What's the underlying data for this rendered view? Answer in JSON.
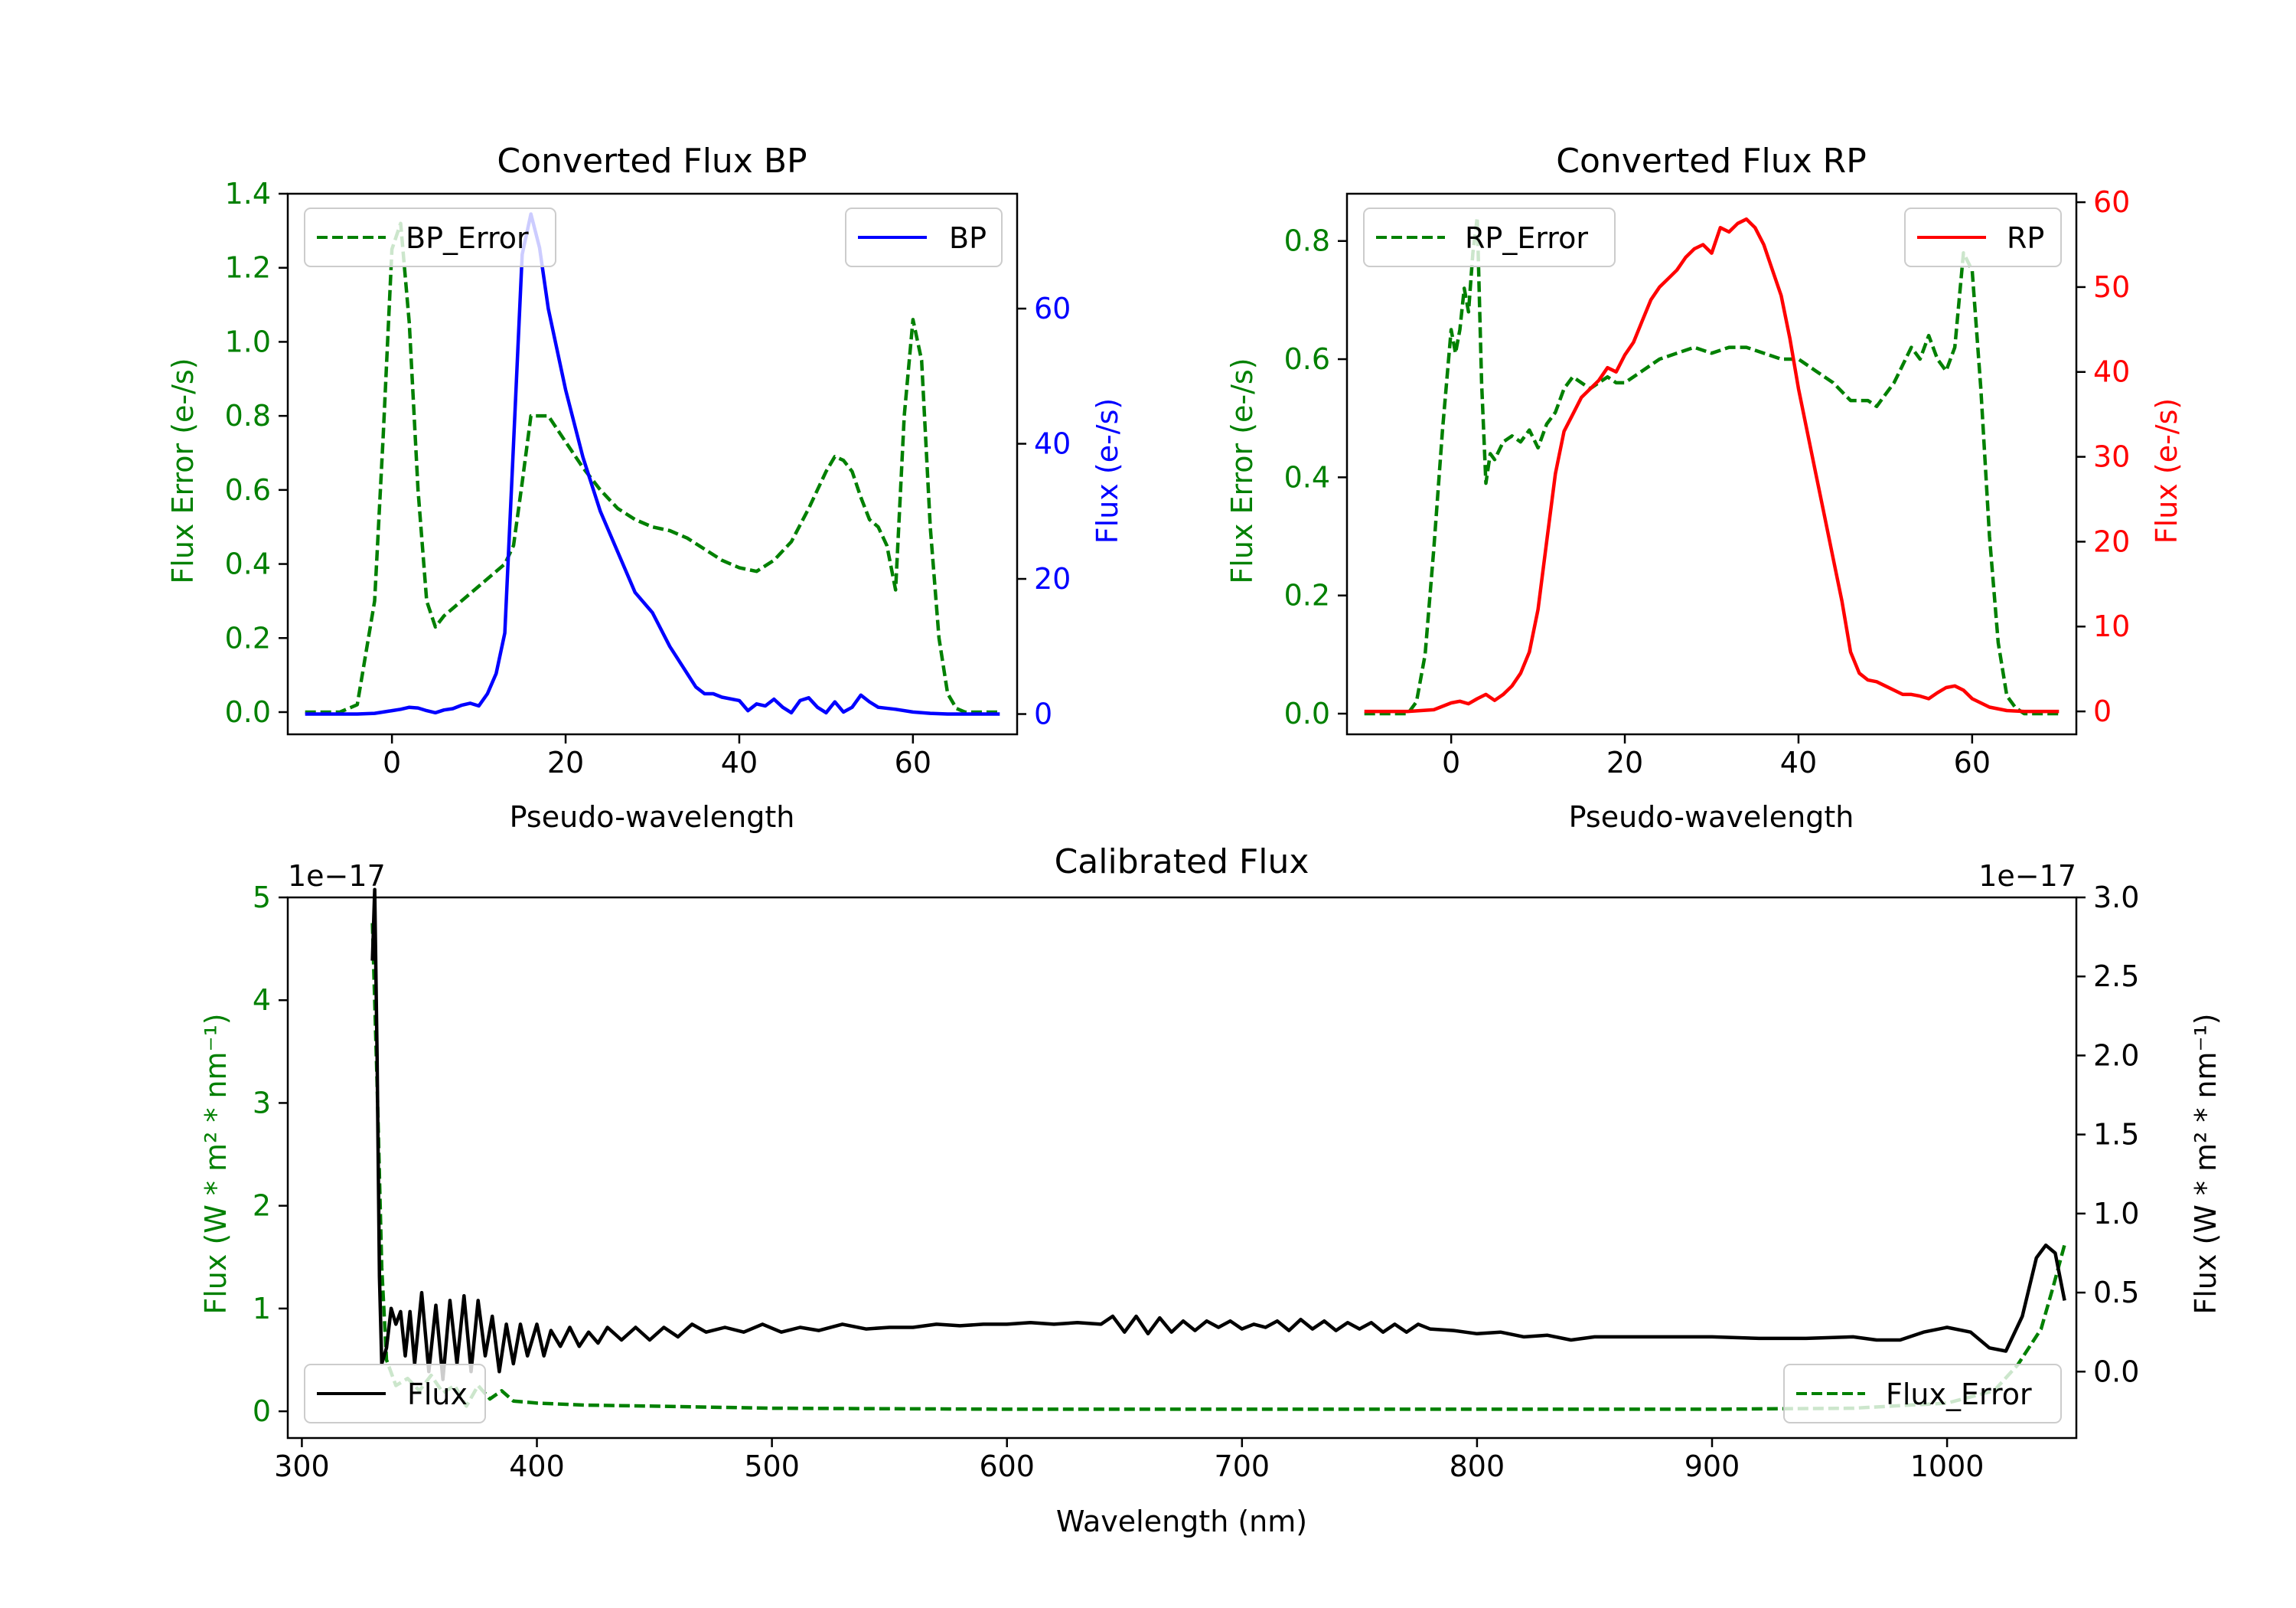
{
  "colors": {
    "bp": "#0000ff",
    "rp": "#ff0000",
    "error": "#008000",
    "flux": "#000000",
    "axis": "#000000"
  },
  "chart_data": [
    {
      "id": "bp",
      "type": "line",
      "title": "Converted Flux BP",
      "xlabel": "Pseudo-wavelength",
      "ylabel_left": "Flux Error (e-/s)",
      "ylabel_right": "Flux (e-/s)",
      "xlim": [
        -12,
        72
      ],
      "ylim_left": [
        -0.06,
        1.4
      ],
      "ylim_right": [
        -3,
        77
      ],
      "xticks": [
        0,
        20,
        40,
        60
      ],
      "yticks_left": [
        0.0,
        0.2,
        0.4,
        0.6,
        0.8,
        1.0,
        1.2,
        1.4
      ],
      "yticks_right": [
        0,
        20,
        40,
        60
      ],
      "legend_left": "BP_Error",
      "legend_right": "BP",
      "series": [
        {
          "name": "BP_Error",
          "axis": "left",
          "style": "dashed",
          "color": "error",
          "x": [
            -10,
            -6,
            -4,
            -2,
            -1,
            0,
            1,
            2,
            3,
            4,
            5,
            6,
            8,
            10,
            12,
            13,
            14,
            15,
            16,
            18,
            20,
            22,
            24,
            26,
            28,
            30,
            32,
            34,
            36,
            38,
            40,
            42,
            44,
            46,
            48,
            50,
            51,
            52,
            53,
            54,
            55,
            56,
            57,
            58,
            59,
            60,
            61,
            62,
            63,
            64,
            65,
            66,
            68,
            70
          ],
          "y": [
            0.0,
            0.0,
            0.02,
            0.3,
            0.75,
            1.25,
            1.32,
            1.05,
            0.6,
            0.3,
            0.23,
            0.26,
            0.3,
            0.34,
            0.38,
            0.4,
            0.45,
            0.62,
            0.8,
            0.8,
            0.73,
            0.66,
            0.6,
            0.55,
            0.52,
            0.5,
            0.49,
            0.47,
            0.44,
            0.41,
            0.39,
            0.38,
            0.41,
            0.46,
            0.55,
            0.65,
            0.69,
            0.68,
            0.65,
            0.58,
            0.52,
            0.5,
            0.45,
            0.33,
            0.8,
            1.06,
            0.95,
            0.5,
            0.2,
            0.05,
            0.01,
            0.0,
            0.0,
            0.0
          ]
        },
        {
          "name": "BP",
          "axis": "right",
          "style": "solid",
          "color": "bp",
          "x": [
            -10,
            -4,
            -2,
            0,
            1,
            2,
            3,
            4,
            5,
            6,
            7,
            8,
            9,
            10,
            11,
            12,
            13,
            14,
            15,
            16,
            17,
            18,
            19,
            20,
            22,
            24,
            26,
            28,
            30,
            32,
            34,
            35,
            36,
            37,
            38,
            40,
            41,
            42,
            43,
            44,
            45,
            46,
            47,
            48,
            49,
            50,
            51,
            52,
            53,
            54,
            55,
            56,
            58,
            60,
            62,
            64,
            66,
            70
          ],
          "y": [
            0,
            0,
            0.1,
            0.5,
            0.7,
            1.0,
            0.9,
            0.5,
            0.2,
            0.6,
            0.8,
            1.3,
            1.6,
            1.2,
            3.0,
            6.0,
            12.0,
            40.0,
            68.0,
            74.0,
            69.0,
            60.0,
            54.0,
            48.0,
            38.0,
            30.0,
            24.0,
            18.0,
            15.0,
            10.0,
            6.0,
            4.0,
            3.0,
            3.0,
            2.5,
            2.0,
            0.5,
            1.5,
            1.2,
            2.2,
            1.0,
            0.2,
            2.0,
            2.4,
            1.0,
            0.2,
            1.8,
            0.3,
            1.0,
            2.8,
            1.8,
            1.0,
            0.7,
            0.3,
            0.1,
            0,
            0,
            0
          ]
        }
      ]
    },
    {
      "id": "rp",
      "type": "line",
      "title": "Converted Flux RP",
      "xlabel": "Pseudo-wavelength",
      "ylabel_left": "Flux Error (e-/s)",
      "ylabel_right": "Flux (e-/s)",
      "xlim": [
        -12,
        72
      ],
      "ylim_left": [
        -0.035,
        0.88
      ],
      "ylim_right": [
        -2.7,
        61
      ],
      "xticks": [
        0,
        20,
        40,
        60
      ],
      "yticks_left": [
        0.0,
        0.2,
        0.4,
        0.6,
        0.8
      ],
      "yticks_right": [
        0,
        10,
        20,
        30,
        40,
        50,
        60
      ],
      "legend_left": "RP_Error",
      "legend_right": "RP",
      "series": [
        {
          "name": "RP_Error",
          "axis": "left",
          "style": "dashed",
          "color": "error",
          "x": [
            -10,
            -5,
            -4,
            -3,
            -2,
            -1,
            0,
            0.5,
            1,
            1.5,
            2,
            2.5,
            3,
            3.5,
            4,
            4.5,
            5,
            6,
            7,
            8,
            9,
            10,
            11,
            12,
            13,
            14,
            15,
            16,
            17,
            18,
            19,
            20,
            22,
            24,
            26,
            28,
            30,
            32,
            34,
            36,
            38,
            40,
            42,
            44,
            46,
            48,
            49,
            50,
            51,
            52,
            53,
            54,
            55,
            56,
            57,
            58,
            59,
            60,
            61,
            62,
            63,
            64,
            65,
            66,
            68,
            70
          ],
          "y": [
            0.0,
            0.0,
            0.02,
            0.1,
            0.28,
            0.48,
            0.65,
            0.61,
            0.65,
            0.72,
            0.68,
            0.78,
            0.84,
            0.56,
            0.39,
            0.44,
            0.43,
            0.46,
            0.47,
            0.46,
            0.48,
            0.45,
            0.49,
            0.51,
            0.55,
            0.57,
            0.56,
            0.55,
            0.56,
            0.57,
            0.56,
            0.56,
            0.58,
            0.6,
            0.61,
            0.62,
            0.61,
            0.62,
            0.62,
            0.61,
            0.6,
            0.6,
            0.58,
            0.56,
            0.53,
            0.53,
            0.52,
            0.54,
            0.56,
            0.59,
            0.62,
            0.6,
            0.64,
            0.6,
            0.58,
            0.62,
            0.78,
            0.75,
            0.55,
            0.3,
            0.12,
            0.03,
            0.01,
            0.0,
            0.0,
            0.0
          ]
        },
        {
          "name": "RP",
          "axis": "right",
          "style": "solid",
          "color": "rp",
          "x": [
            -10,
            -5,
            -2,
            0,
            1,
            2,
            3,
            4,
            5,
            6,
            7,
            8,
            9,
            10,
            11,
            12,
            13,
            14,
            15,
            16,
            17,
            18,
            19,
            20,
            21,
            22,
            23,
            24,
            25,
            26,
            27,
            28,
            29,
            30,
            31,
            32,
            33,
            34,
            35,
            36,
            37,
            38,
            39,
            40,
            41,
            42,
            43,
            44,
            45,
            46,
            47,
            48,
            49,
            50,
            51,
            52,
            53,
            54,
            55,
            56,
            57,
            58,
            59,
            60,
            62,
            64,
            66,
            70
          ],
          "y": [
            0,
            0,
            0.2,
            1.0,
            1.2,
            0.9,
            1.5,
            2.0,
            1.3,
            2.0,
            3.0,
            4.5,
            7.0,
            12.0,
            20.0,
            28.0,
            33.0,
            35.0,
            37.0,
            38.0,
            39.0,
            40.5,
            40.0,
            42.0,
            43.5,
            46.0,
            48.5,
            50.0,
            51.0,
            52.0,
            53.5,
            54.5,
            55.0,
            54.0,
            57.0,
            56.5,
            57.5,
            58.0,
            57.0,
            55.0,
            52.0,
            49.0,
            44.0,
            38.0,
            33.0,
            28.0,
            23.0,
            18.0,
            13.0,
            7.0,
            4.5,
            3.7,
            3.5,
            3.0,
            2.5,
            2.0,
            2.0,
            1.8,
            1.5,
            2.2,
            2.8,
            3.0,
            2.5,
            1.5,
            0.5,
            0.1,
            0,
            0
          ]
        }
      ]
    },
    {
      "id": "cal",
      "type": "line",
      "title": "Calibrated Flux",
      "xlabel": "Wavelength (nm)",
      "ylabel_left": "Flux (W * m² * nm⁻¹)",
      "ylabel_right": "Flux (W * m² * nm⁻¹)",
      "offset_left": "1e−17",
      "offset_right": "1e−17",
      "xlim": [
        294,
        1055
      ],
      "ylim_left": [
        -0.26,
        5.0
      ],
      "ylim_right": [
        -0.42,
        3.0
      ],
      "xticks": [
        300,
        400,
        500,
        600,
        700,
        800,
        900,
        1000
      ],
      "yticks_left": [
        0,
        1,
        2,
        3,
        4,
        5
      ],
      "yticks_right": [
        "0.0",
        "0.5",
        "1.0",
        "1.5",
        "2.0",
        "2.5",
        "3.0"
      ],
      "legend_left": "Flux",
      "legend_right": "Flux_Error",
      "series": [
        {
          "name": "Flux_Error",
          "axis": "left",
          "style": "dashed",
          "color": "error",
          "x": [
            330,
            332,
            334,
            336,
            340,
            345,
            350,
            355,
            360,
            365,
            370,
            375,
            380,
            385,
            390,
            400,
            420,
            450,
            500,
            600,
            700,
            800,
            900,
            960,
            1000,
            1020,
            1030,
            1040,
            1045,
            1050
          ],
          "y": [
            4.75,
            3.2,
            1.4,
            0.5,
            0.25,
            0.32,
            0.2,
            0.35,
            0.18,
            0.25,
            0.05,
            0.25,
            0.12,
            0.2,
            0.1,
            0.08,
            0.06,
            0.05,
            0.03,
            0.02,
            0.02,
            0.02,
            0.02,
            0.03,
            0.08,
            0.2,
            0.45,
            0.8,
            1.2,
            1.62
          ]
        },
        {
          "name": "Flux",
          "axis": "right",
          "style": "solid",
          "color": "flux",
          "x": [
            330,
            331,
            332,
            333,
            334,
            336,
            338,
            340,
            342,
            344,
            346,
            348,
            351,
            354,
            357,
            360,
            363,
            366,
            369,
            372,
            375,
            378,
            381,
            384,
            387,
            390,
            393,
            396,
            400,
            403,
            406,
            410,
            414,
            418,
            422,
            426,
            430,
            436,
            442,
            448,
            454,
            460,
            466,
            472,
            480,
            488,
            496,
            504,
            512,
            520,
            530,
            540,
            550,
            560,
            570,
            580,
            590,
            600,
            610,
            620,
            630,
            640,
            645,
            650,
            655,
            660,
            665,
            670,
            675,
            680,
            685,
            690,
            695,
            700,
            705,
            710,
            715,
            720,
            725,
            730,
            735,
            740,
            745,
            750,
            755,
            760,
            765,
            770,
            775,
            780,
            790,
            800,
            810,
            820,
            830,
            840,
            850,
            860,
            880,
            900,
            920,
            940,
            960,
            970,
            980,
            990,
            1000,
            1010,
            1018,
            1025,
            1032,
            1038,
            1042,
            1046,
            1050
          ],
          "y": [
            2.6,
            3.05,
            2.0,
            0.6,
            0.05,
            0.15,
            0.4,
            0.3,
            0.38,
            0.1,
            0.38,
            0.05,
            0.5,
            0.0,
            0.42,
            -0.05,
            0.45,
            0.05,
            0.48,
            0.0,
            0.45,
            0.1,
            0.35,
            0.0,
            0.3,
            0.05,
            0.3,
            0.1,
            0.3,
            0.1,
            0.26,
            0.16,
            0.28,
            0.16,
            0.25,
            0.18,
            0.28,
            0.2,
            0.28,
            0.2,
            0.28,
            0.22,
            0.3,
            0.25,
            0.28,
            0.25,
            0.3,
            0.25,
            0.28,
            0.26,
            0.3,
            0.27,
            0.28,
            0.28,
            0.3,
            0.29,
            0.3,
            0.3,
            0.31,
            0.3,
            0.31,
            0.3,
            0.35,
            0.25,
            0.35,
            0.24,
            0.34,
            0.25,
            0.32,
            0.26,
            0.32,
            0.28,
            0.32,
            0.27,
            0.3,
            0.28,
            0.32,
            0.26,
            0.33,
            0.27,
            0.32,
            0.26,
            0.31,
            0.27,
            0.31,
            0.25,
            0.3,
            0.25,
            0.3,
            0.27,
            0.26,
            0.24,
            0.25,
            0.22,
            0.23,
            0.2,
            0.22,
            0.22,
            0.22,
            0.22,
            0.21,
            0.21,
            0.22,
            0.2,
            0.2,
            0.25,
            0.28,
            0.25,
            0.15,
            0.13,
            0.35,
            0.72,
            0.8,
            0.75,
            0.45
          ]
        }
      ]
    }
  ]
}
